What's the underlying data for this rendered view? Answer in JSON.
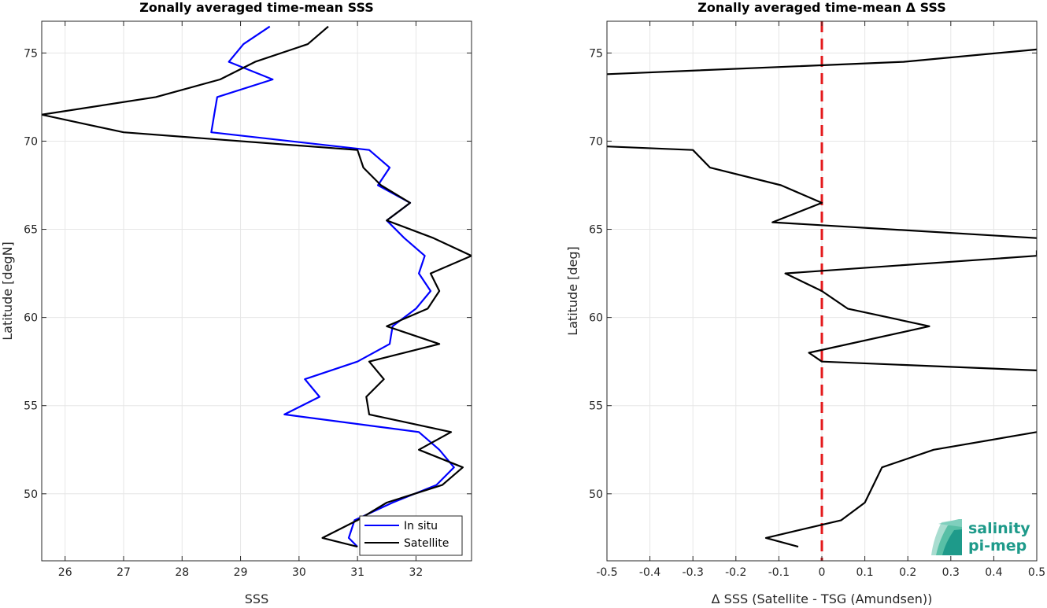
{
  "chart_data": [
    {
      "type": "line",
      "title": "Zonally averaged time-mean SSS",
      "xlabel": "SSS",
      "ylabel": "Latitude [degN]",
      "xlim": [
        25.6,
        32.95
      ],
      "ylim": [
        46.2,
        76.8
      ],
      "xticks": [
        26,
        27,
        28,
        29,
        30,
        31,
        32
      ],
      "yticks": [
        50,
        55,
        60,
        65,
        70,
        75
      ],
      "grid": true,
      "legend": "bottom-right",
      "series": [
        {
          "name": "In situ",
          "color": "#0000ff",
          "points": [
            [
              31.0,
              47.0
            ],
            [
              30.85,
              47.5
            ],
            [
              30.95,
              48.5
            ],
            [
              31.6,
              49.5
            ],
            [
              32.35,
              50.5
            ],
            [
              32.65,
              51.5
            ],
            [
              32.4,
              52.5
            ],
            [
              32.05,
              53.5
            ],
            [
              29.75,
              54.5
            ],
            [
              30.35,
              55.5
            ],
            [
              30.1,
              56.5
            ],
            [
              31.0,
              57.5
            ],
            [
              31.55,
              58.5
            ],
            [
              31.6,
              59.5
            ],
            [
              32.0,
              60.5
            ],
            [
              32.25,
              61.5
            ],
            [
              32.05,
              62.5
            ],
            [
              32.15,
              63.5
            ],
            [
              31.8,
              64.5
            ],
            [
              31.5,
              65.5
            ],
            [
              31.9,
              66.5
            ],
            [
              31.35,
              67.5
            ],
            [
              31.55,
              68.5
            ],
            [
              31.2,
              69.5
            ],
            [
              28.5,
              70.5
            ],
            [
              28.55,
              71.5
            ],
            [
              28.6,
              72.5
            ],
            [
              29.55,
              73.5
            ],
            [
              28.8,
              74.5
            ],
            [
              29.05,
              75.5
            ],
            [
              29.5,
              76.5
            ]
          ]
        },
        {
          "name": "Satellite",
          "color": "#000000",
          "points": [
            [
              31.0,
              47.0
            ],
            [
              30.4,
              47.5
            ],
            [
              31.0,
              48.5
            ],
            [
              31.5,
              49.5
            ],
            [
              32.45,
              50.5
            ],
            [
              32.8,
              51.5
            ],
            [
              32.05,
              52.5
            ],
            [
              32.6,
              53.5
            ],
            [
              31.2,
              54.5
            ],
            [
              31.15,
              55.5
            ],
            [
              31.45,
              56.5
            ],
            [
              31.2,
              57.5
            ],
            [
              32.4,
              58.5
            ],
            [
              31.5,
              59.5
            ],
            [
              32.2,
              60.5
            ],
            [
              32.4,
              61.5
            ],
            [
              32.25,
              62.5
            ],
            [
              32.95,
              63.5
            ],
            [
              32.3,
              64.5
            ],
            [
              31.5,
              65.5
            ],
            [
              31.9,
              66.5
            ],
            [
              31.4,
              67.5
            ],
            [
              31.1,
              68.5
            ],
            [
              31.0,
              69.5
            ],
            [
              27.0,
              70.5
            ],
            [
              25.6,
              71.5
            ],
            [
              27.55,
              72.5
            ],
            [
              28.65,
              73.5
            ],
            [
              29.25,
              74.5
            ],
            [
              30.15,
              75.5
            ],
            [
              30.5,
              76.5
            ]
          ]
        }
      ]
    },
    {
      "type": "line",
      "title": "Zonally averaged time-mean Δ SSS",
      "xlabel": "Δ SSS (Satellite - TSG (Amundsen))",
      "ylabel": "Latitude [deg]",
      "xlim": [
        -0.5,
        0.5
      ],
      "ylim": [
        46.2,
        76.8
      ],
      "xticks": [
        -0.5,
        -0.4,
        -0.3,
        -0.2,
        -0.1,
        0,
        0.1,
        0.2,
        0.3,
        0.4,
        0.5
      ],
      "xtick_labels": [
        "-0.5",
        "-0.4",
        "-0.3",
        "-0.2",
        "-0.1",
        "0",
        "0.1",
        "0.2",
        "0.3",
        "0.4",
        "0.5"
      ],
      "yticks": [
        50,
        55,
        60,
        65,
        70,
        75
      ],
      "grid": true,
      "reference_line": {
        "x": 0,
        "color": "#e41a1c",
        "style": "dashed"
      },
      "series": [
        {
          "color": "#000000",
          "points": [
            [
              -0.055,
              47.0
            ],
            [
              -0.13,
              47.5
            ],
            [
              0.045,
              48.5
            ],
            [
              0.1,
              49.5
            ],
            [
              0.12,
              50.5
            ],
            [
              0.14,
              51.5
            ],
            [
              0.26,
              52.5
            ],
            [
              0.5,
              53.5
            ],
            [
              null,
              54.5
            ],
            [
              null,
              55.5
            ],
            [
              null,
              56.5
            ],
            [
              0.5,
              57.0
            ],
            [
              0.0,
              57.5
            ],
            [
              -0.03,
              58.0
            ],
            [
              0.25,
              59.5
            ],
            [
              0.06,
              60.5
            ],
            [
              0.0,
              61.5
            ],
            [
              -0.085,
              62.5
            ],
            [
              0.5,
              63.5
            ],
            [
              0.5,
              63.8
            ],
            [
              null,
              64.0
            ],
            [
              0.5,
              64.5
            ],
            [
              -0.115,
              65.4
            ],
            [
              0.0,
              66.5
            ],
            [
              -0.095,
              67.5
            ],
            [
              -0.26,
              68.5
            ],
            [
              -0.3,
              69.5
            ],
            [
              -0.5,
              69.7
            ],
            [
              null,
              70.0
            ],
            [
              -0.5,
              73.8
            ],
            [
              0.19,
              74.5
            ],
            [
              0.5,
              75.2
            ]
          ]
        }
      ]
    }
  ],
  "legend": {
    "items": [
      {
        "label": "In situ",
        "color": "#0000ff"
      },
      {
        "label": "Satellite",
        "color": "#000000"
      }
    ]
  },
  "logo": {
    "line1": "salinity",
    "line2": "pi-mep",
    "color": "#1e9a8a"
  }
}
